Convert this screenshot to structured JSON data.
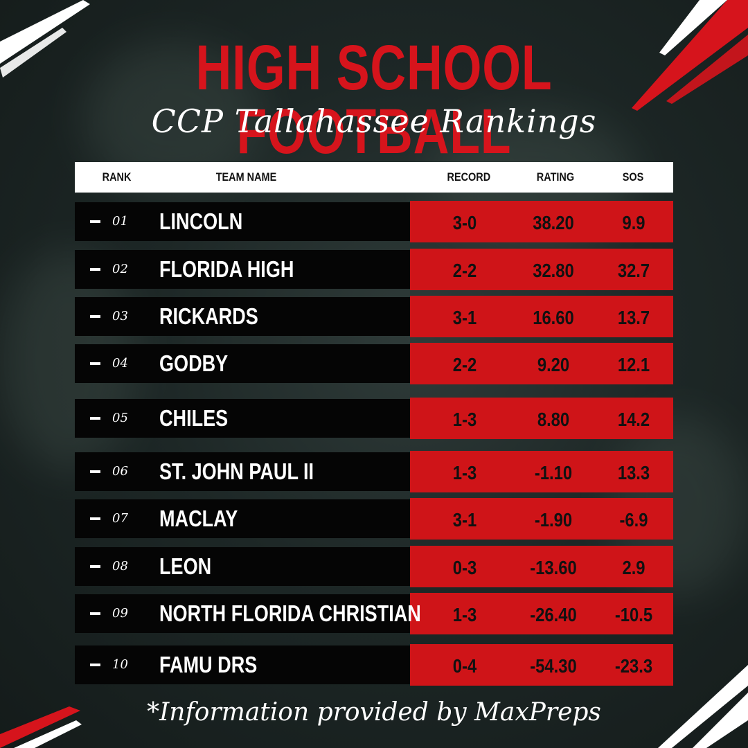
{
  "title": "HIGH SCHOOL FOOTBALL",
  "subtitle": "CCP Tallahassee Rankings",
  "columns": {
    "rank": "RANK",
    "team": "TEAM NAME",
    "record": "RECORD",
    "rating": "RATING",
    "sos": "SOS"
  },
  "rows": [
    {
      "rank": "01",
      "team": "LINCOLN",
      "record": "3-0",
      "rating": "38.20",
      "sos": "9.9"
    },
    {
      "rank": "02",
      "team": "FLORIDA HIGH",
      "record": "2-2",
      "rating": "32.80",
      "sos": "32.7"
    },
    {
      "rank": "03",
      "team": "RICKARDS",
      "record": "3-1",
      "rating": "16.60",
      "sos": "13.7"
    },
    {
      "rank": "04",
      "team": "GODBY",
      "record": "2-2",
      "rating": "9.20",
      "sos": "12.1"
    },
    {
      "rank": "05",
      "team": "CHILES",
      "record": "1-3",
      "rating": "8.80",
      "sos": "14.2"
    },
    {
      "rank": "06",
      "team": "ST. JOHN PAUL II",
      "record": "1-3",
      "rating": "-1.10",
      "sos": "13.3"
    },
    {
      "rank": "07",
      "team": "MACLAY",
      "record": "3-1",
      "rating": "-1.90",
      "sos": "-6.9"
    },
    {
      "rank": "08",
      "team": "LEON",
      "record": "0-3",
      "rating": "-13.60",
      "sos": "2.9"
    },
    {
      "rank": "09",
      "team": "NORTH FLORIDA CHRISTIAN",
      "record": "1-3",
      "rating": "-26.40",
      "sos": "-10.5"
    },
    {
      "rank": "10",
      "team": "FAMU DRS",
      "record": "0-4",
      "rating": "-54.30",
      "sos": "-23.3"
    }
  ],
  "footer": "*Information provided by MaxPreps",
  "colors": {
    "accent_red": "#cf1418",
    "title_red": "#d6141c",
    "row_black": "#050505",
    "background": "#1d2726"
  }
}
